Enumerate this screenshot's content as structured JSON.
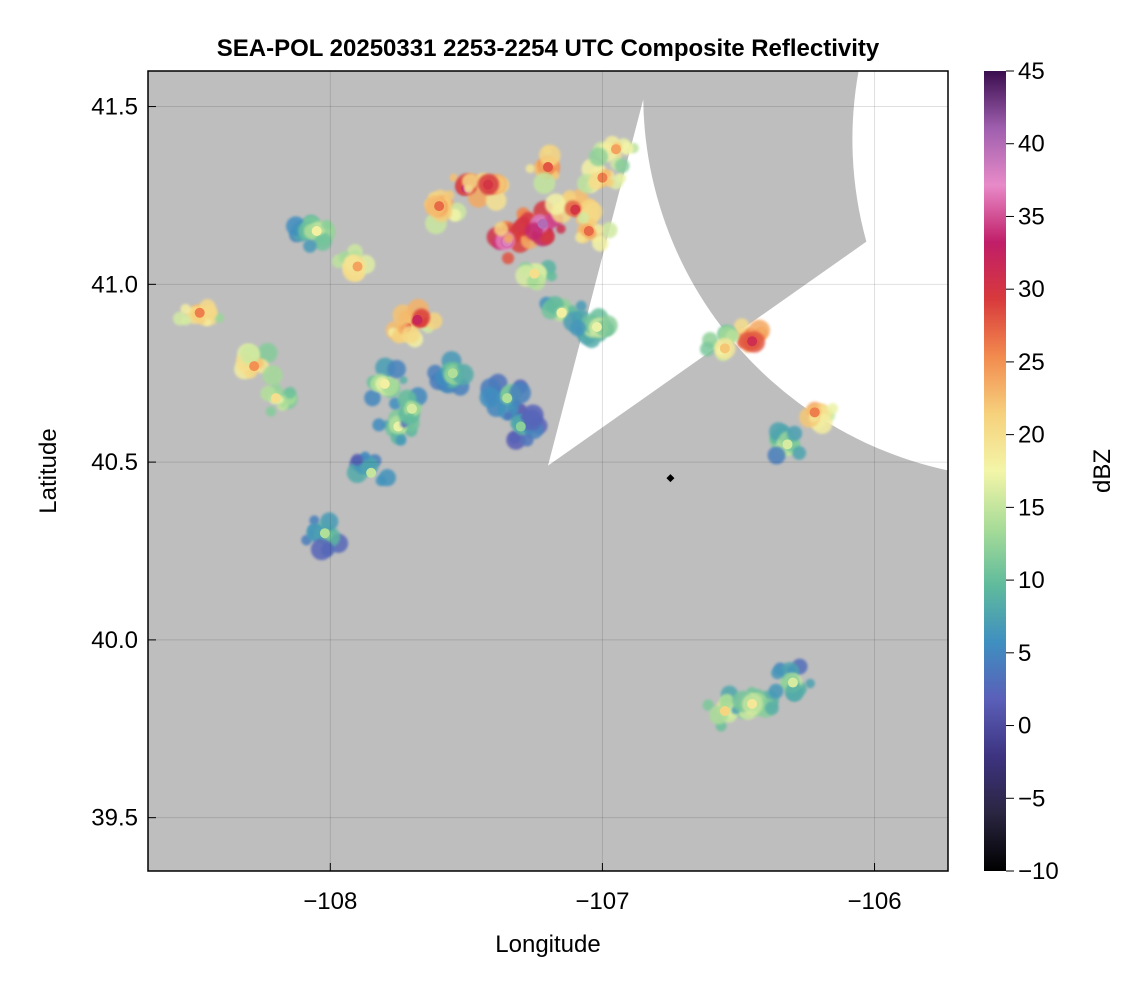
{
  "chart_data": {
    "type": "heatmap",
    "title": "SEA-POL 20250331 2253-2254 UTC Composite Reflectivity",
    "xlabel": "Longitude",
    "ylabel": "Latitude",
    "xlim": [
      -108.67,
      -105.73
    ],
    "ylim": [
      39.35,
      41.6
    ],
    "xticks": [
      -108,
      -107,
      -106
    ],
    "xtick_labels": [
      "−108",
      "−107",
      "−106"
    ],
    "yticks": [
      39.5,
      40.0,
      40.5,
      41.0,
      41.5
    ],
    "ytick_labels": [
      "39.5",
      "40.0",
      "40.5",
      "41.0",
      "41.5"
    ],
    "grid": true,
    "radar": {
      "center_lon": -106.75,
      "center_lat": 40.455,
      "max_range_deg_lat": 1.08,
      "blocked_sectors": [
        {
          "from_lon": -107.2,
          "from_lat": 40.49,
          "edge1_lon": -106.85,
          "edge1_lat": 41.52,
          "edge2_lon": -106.03,
          "edge2_lat": 41.12
        }
      ]
    },
    "no_coverage_color": "#bebebe",
    "coverage_color": "#ffffff",
    "colorbar": {
      "label": "dBZ",
      "min": -10,
      "max": 45,
      "ticks": [
        -10,
        -5,
        0,
        5,
        10,
        15,
        20,
        25,
        30,
        35,
        40,
        45
      ],
      "tick_labels": [
        "−10",
        "−5",
        "0",
        "5",
        "10",
        "15",
        "20",
        "25",
        "30",
        "35",
        "40",
        "45"
      ],
      "colors": [
        "#000000",
        "#2a2540",
        "#3d3380",
        "#5a5fb8",
        "#3f8fc0",
        "#5fbb9c",
        "#a8dc98",
        "#f3f5a8",
        "#f6d17c",
        "#f28b4e",
        "#d83a3c",
        "#c01e68",
        "#e88ac8",
        "#9f5fae",
        "#3a0d4e"
      ]
    },
    "echo_cells": [
      {
        "lon": -108.48,
        "lat": 40.92,
        "dbz": 26
      },
      {
        "lon": -108.28,
        "lat": 40.77,
        "dbz": 25
      },
      {
        "lon": -108.2,
        "lat": 40.68,
        "dbz": 20
      },
      {
        "lon": -108.05,
        "lat": 41.15,
        "dbz": 18
      },
      {
        "lon": -107.9,
        "lat": 41.05,
        "dbz": 24
      },
      {
        "lon": -107.8,
        "lat": 40.72,
        "dbz": 18
      },
      {
        "lon": -107.75,
        "lat": 40.6,
        "dbz": 17
      },
      {
        "lon": -107.72,
        "lat": 40.88,
        "dbz": 28
      },
      {
        "lon": -107.68,
        "lat": 40.9,
        "dbz": 32
      },
      {
        "lon": -107.7,
        "lat": 40.65,
        "dbz": 16
      },
      {
        "lon": -107.85,
        "lat": 40.47,
        "dbz": 15
      },
      {
        "lon": -108.02,
        "lat": 40.3,
        "dbz": 14
      },
      {
        "lon": -107.55,
        "lat": 40.75,
        "dbz": 14
      },
      {
        "lon": -107.6,
        "lat": 41.22,
        "dbz": 27
      },
      {
        "lon": -107.5,
        "lat": 41.27,
        "dbz": 33
      },
      {
        "lon": -107.42,
        "lat": 41.28,
        "dbz": 30
      },
      {
        "lon": -107.35,
        "lat": 41.12,
        "dbz": 38
      },
      {
        "lon": -107.3,
        "lat": 41.16,
        "dbz": 34
      },
      {
        "lon": -107.22,
        "lat": 41.17,
        "dbz": 40
      },
      {
        "lon": -107.1,
        "lat": 41.21,
        "dbz": 30
      },
      {
        "lon": -107.2,
        "lat": 41.33,
        "dbz": 28
      },
      {
        "lon": -107.0,
        "lat": 41.3,
        "dbz": 26
      },
      {
        "lon": -106.95,
        "lat": 41.38,
        "dbz": 24
      },
      {
        "lon": -107.05,
        "lat": 41.15,
        "dbz": 27
      },
      {
        "lon": -107.25,
        "lat": 41.03,
        "dbz": 20
      },
      {
        "lon": -107.15,
        "lat": 40.92,
        "dbz": 18
      },
      {
        "lon": -107.02,
        "lat": 40.88,
        "dbz": 17
      },
      {
        "lon": -107.35,
        "lat": 40.68,
        "dbz": 14
      },
      {
        "lon": -107.3,
        "lat": 40.6,
        "dbz": 12
      },
      {
        "lon": -106.45,
        "lat": 40.84,
        "dbz": 31
      },
      {
        "lon": -106.55,
        "lat": 40.82,
        "dbz": 22
      },
      {
        "lon": -106.22,
        "lat": 40.64,
        "dbz": 26
      },
      {
        "lon": -106.32,
        "lat": 40.55,
        "dbz": 16
      },
      {
        "lon": -106.55,
        "lat": 39.8,
        "dbz": 21
      },
      {
        "lon": -106.45,
        "lat": 39.82,
        "dbz": 19
      },
      {
        "lon": -106.3,
        "lat": 39.88,
        "dbz": 16
      }
    ],
    "site_marker": {
      "lon": -106.75,
      "lat": 40.455
    }
  }
}
